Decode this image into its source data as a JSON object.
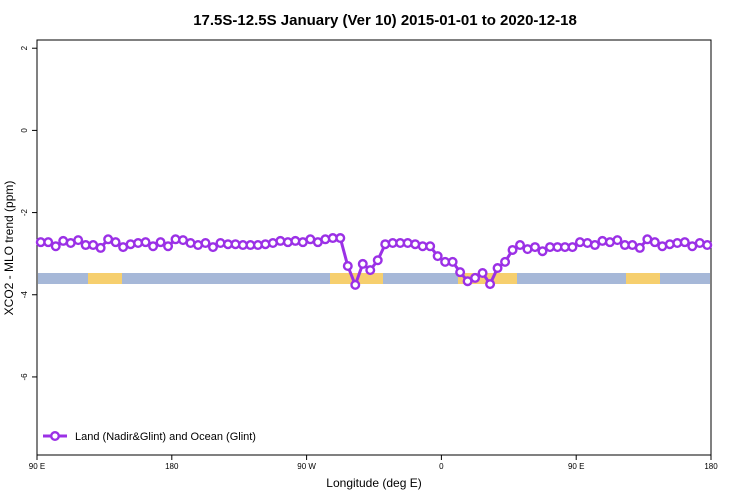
{
  "chart_data": {
    "type": "line",
    "title": "17.5S-12.5S January (Ver 10)   2015-01-01 to 2020-12-18",
    "x_label": "Longitude (deg E)",
    "y_label": "XCO2 - MLO trend (ppm)",
    "x": [
      92.5,
      97.5,
      102.5,
      107.5,
      112.5,
      117.5,
      122.5,
      127.5,
      132.5,
      137.5,
      142.5,
      147.5,
      152.5,
      157.5,
      162.5,
      167.5,
      172.5,
      177.5,
      182.5,
      187.5,
      192.5,
      197.5,
      202.5,
      207.5,
      212.5,
      217.5,
      222.5,
      227.5,
      232.5,
      237.5,
      242.5,
      247.5,
      252.5,
      257.5,
      262.5,
      267.5,
      272.5,
      277.5,
      282.5,
      287.5,
      292.5,
      297.5,
      302.5,
      307.5,
      312.5,
      317.5,
      322.5,
      327.5,
      332.5,
      337.5,
      342.5,
      347.5,
      352.5,
      357.5,
      362.5,
      367.5,
      372.5,
      377.5,
      382.5,
      387.5,
      392.5,
      397.5,
      402.5,
      407.5,
      412.5,
      417.5,
      422.5,
      427.5,
      432.5,
      437.5,
      442.5,
      447.5,
      452.5,
      457.5,
      462.5,
      467.5,
      472.5,
      477.5,
      482.5,
      487.5,
      492.5,
      497.5,
      502.5,
      507.5,
      512.5,
      517.5,
      522.5,
      527.5,
      532.5,
      537.5
    ],
    "series": [
      {
        "name": "Land (Nadir&Glint) and Ocean (Glint)",
        "color": "#9b30e6",
        "values": [
          -2.72,
          -2.72,
          -2.82,
          -2.69,
          -2.74,
          -2.67,
          -2.79,
          -2.79,
          -2.86,
          -2.65,
          -2.72,
          -2.84,
          -2.77,
          -2.74,
          -2.72,
          -2.82,
          -2.72,
          -2.82,
          -2.65,
          -2.67,
          -2.74,
          -2.79,
          -2.74,
          -2.84,
          -2.74,
          -2.77,
          -2.77,
          -2.79,
          -2.79,
          -2.79,
          -2.77,
          -2.74,
          -2.69,
          -2.72,
          -2.69,
          -2.72,
          -2.65,
          -2.72,
          -2.65,
          -2.62,
          -2.62,
          -3.3,
          -3.76,
          -3.25,
          -3.4,
          -3.16,
          -2.77,
          -2.74,
          -2.74,
          -2.74,
          -2.77,
          -2.82,
          -2.82,
          -3.06,
          -3.2,
          -3.2,
          -3.45,
          -3.67,
          -3.59,
          -3.47,
          -3.74,
          -3.35,
          -3.2,
          -2.91,
          -2.79,
          -2.89,
          -2.84,
          -2.94,
          -2.84,
          -2.84,
          -2.84,
          -2.84,
          -2.72,
          -2.74,
          -2.79,
          -2.69,
          -2.72,
          -2.67,
          -2.79,
          -2.79,
          -2.86,
          -2.65,
          -2.72,
          -2.82,
          -2.77,
          -2.74,
          -2.72,
          -2.82,
          -2.74,
          -2.79
        ]
      }
    ],
    "xlim": [
      90,
      540
    ],
    "ylim": [
      -7.9,
      2.2
    ],
    "xticks": [
      {
        "value": 90,
        "label": "90 E"
      },
      {
        "value": 180,
        "label": "180"
      },
      {
        "value": 270,
        "label": "90 W"
      },
      {
        "value": 360,
        "label": "0"
      },
      {
        "value": 450,
        "label": "90 E"
      },
      {
        "value": 540,
        "label": "180"
      }
    ],
    "yticks": [
      -6,
      -4,
      -2,
      0,
      2
    ],
    "legend": "bottom-left"
  }
}
